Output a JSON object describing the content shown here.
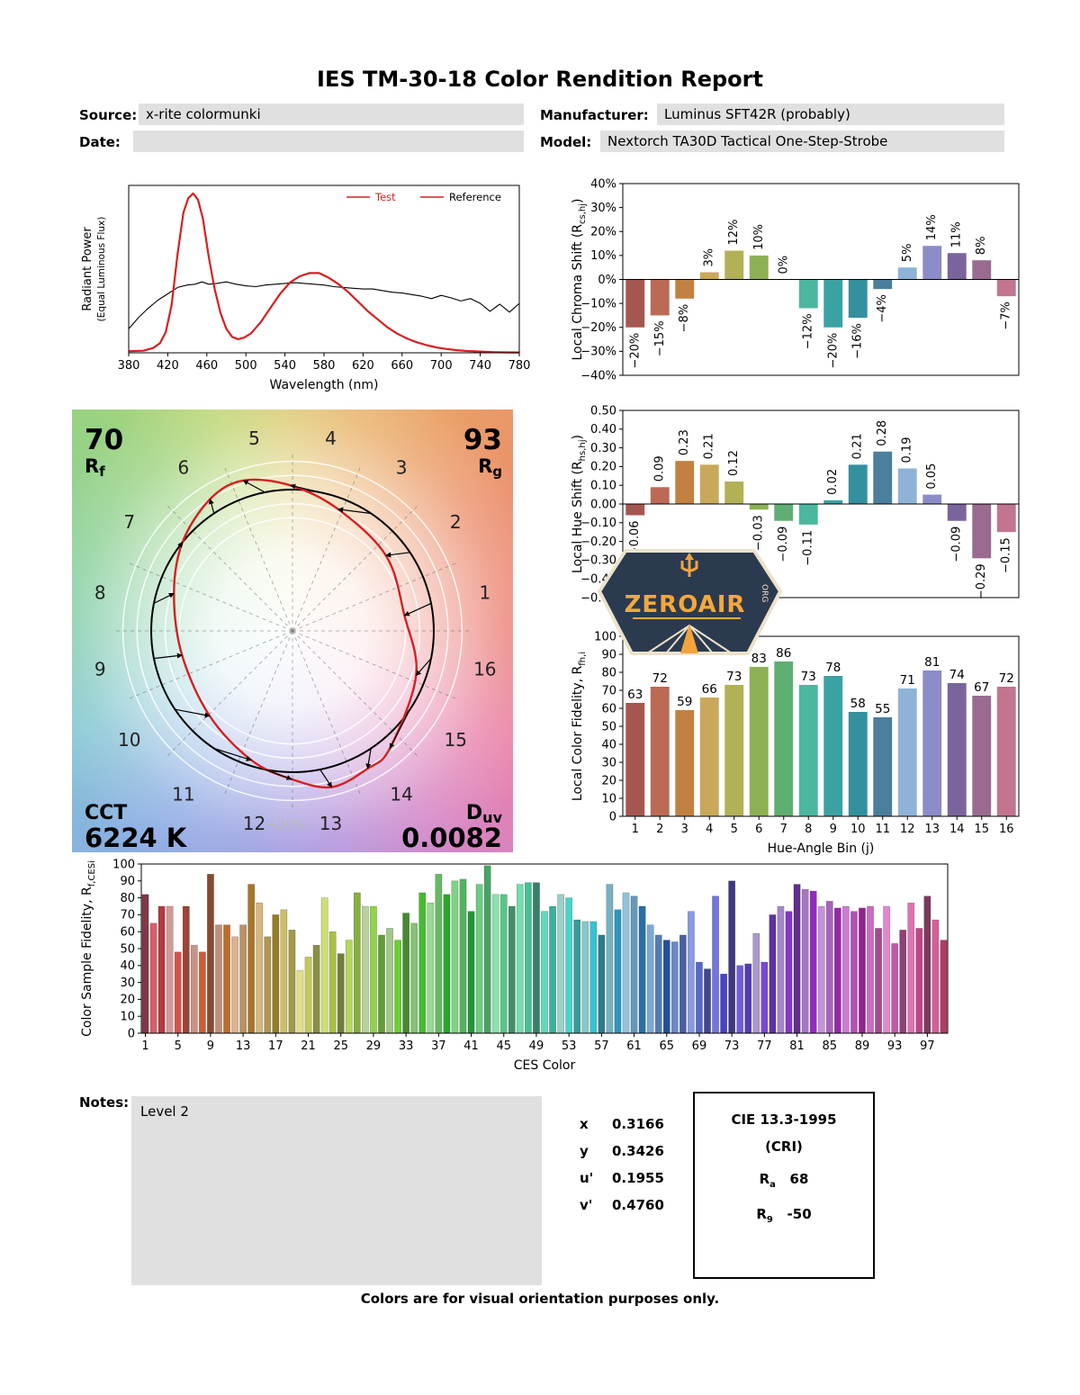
{
  "title": "IES TM-30-18 Color Rendition Report",
  "header": {
    "source_label": "Source:",
    "source_value": "x-rite colormunki",
    "manufacturer_label": "Manufacturer:",
    "manufacturer_value": "Luminus SFT42R (probably)",
    "date_label": "Date:",
    "date_value": "",
    "model_label": "Model:",
    "model_value": "Nextorch TA30D Tactical One-Step-Strobe"
  },
  "bin_colors": [
    "#a5564f",
    "#bd6a55",
    "#c28140",
    "#c9a959",
    "#b2b156",
    "#8db054",
    "#5fae72",
    "#4bb89e",
    "#3aa2a2",
    "#33909f",
    "#4b7f9e",
    "#8fb3d8",
    "#8b8cc8",
    "#7a649c",
    "#996b90",
    "#c27490"
  ],
  "chart_data": [
    {
      "id": "spectral_power_distribution",
      "type": "line",
      "xlabel": "Wavelength (nm)",
      "ylabel_line1": "Radiant Power",
      "ylabel_line2": "(Equal Luminous Flux)",
      "xlim": [
        380,
        780
      ],
      "ylim": [
        0,
        1.05
      ],
      "xticks": [
        380,
        420,
        460,
        500,
        540,
        580,
        620,
        660,
        700,
        740,
        780
      ],
      "legend": [
        {
          "name": "Test",
          "line_color": "#d62020",
          "text_color": "#d62020"
        },
        {
          "name": "Reference",
          "line_color": "#d62020",
          "text_color": "#000000"
        }
      ],
      "series": [
        {
          "name": "Test",
          "color": "#d62020",
          "width": 2.2,
          "points": [
            [
              380,
              0.01
            ],
            [
              395,
              0.013
            ],
            [
              405,
              0.03
            ],
            [
              412,
              0.06
            ],
            [
              418,
              0.13
            ],
            [
              424,
              0.3
            ],
            [
              430,
              0.62
            ],
            [
              436,
              0.88
            ],
            [
              441,
              0.97
            ],
            [
              446,
              1.0
            ],
            [
              451,
              0.96
            ],
            [
              456,
              0.84
            ],
            [
              462,
              0.6
            ],
            [
              468,
              0.4
            ],
            [
              474,
              0.25
            ],
            [
              480,
              0.15
            ],
            [
              486,
              0.1
            ],
            [
              492,
              0.085
            ],
            [
              498,
              0.095
            ],
            [
              505,
              0.12
            ],
            [
              515,
              0.19
            ],
            [
              525,
              0.28
            ],
            [
              535,
              0.37
            ],
            [
              545,
              0.44
            ],
            [
              555,
              0.48
            ],
            [
              565,
              0.5
            ],
            [
              575,
              0.5
            ],
            [
              585,
              0.47
            ],
            [
              595,
              0.43
            ],
            [
              605,
              0.38
            ],
            [
              615,
              0.32
            ],
            [
              625,
              0.26
            ],
            [
              635,
              0.21
            ],
            [
              645,
              0.16
            ],
            [
              655,
              0.12
            ],
            [
              665,
              0.09
            ],
            [
              675,
              0.066
            ],
            [
              685,
              0.048
            ],
            [
              695,
              0.034
            ],
            [
              705,
              0.024
            ],
            [
              715,
              0.017
            ],
            [
              725,
              0.012
            ],
            [
              735,
              0.009
            ],
            [
              745,
              0.006
            ],
            [
              755,
              0.004
            ],
            [
              765,
              0.003
            ],
            [
              780,
              0.002
            ]
          ]
        },
        {
          "name": "Reference",
          "color": "#000000",
          "width": 1.1,
          "points": [
            [
              380,
              0.15
            ],
            [
              390,
              0.22
            ],
            [
              400,
              0.28
            ],
            [
              410,
              0.33
            ],
            [
              420,
              0.37
            ],
            [
              430,
              0.41
            ],
            [
              440,
              0.425
            ],
            [
              448,
              0.43
            ],
            [
              455,
              0.445
            ],
            [
              462,
              0.43
            ],
            [
              470,
              0.435
            ],
            [
              480,
              0.445
            ],
            [
              490,
              0.43
            ],
            [
              500,
              0.42
            ],
            [
              510,
              0.415
            ],
            [
              520,
              0.425
            ],
            [
              530,
              0.43
            ],
            [
              540,
              0.435
            ],
            [
              550,
              0.44
            ],
            [
              560,
              0.435
            ],
            [
              570,
              0.43
            ],
            [
              580,
              0.425
            ],
            [
              590,
              0.415
            ],
            [
              600,
              0.41
            ],
            [
              610,
              0.405
            ],
            [
              620,
              0.4
            ],
            [
              630,
              0.4
            ],
            [
              640,
              0.39
            ],
            [
              650,
              0.38
            ],
            [
              660,
              0.375
            ],
            [
              670,
              0.365
            ],
            [
              680,
              0.355
            ],
            [
              690,
              0.34
            ],
            [
              700,
              0.36
            ],
            [
              710,
              0.345
            ],
            [
              720,
              0.325
            ],
            [
              730,
              0.34
            ],
            [
              740,
              0.31
            ],
            [
              750,
              0.26
            ],
            [
              760,
              0.305
            ],
            [
              770,
              0.255
            ],
            [
              780,
              0.31
            ]
          ]
        }
      ]
    },
    {
      "id": "local_chroma_shift",
      "type": "bar",
      "ylabel_parts": {
        "pre": "Local Chroma Shift (R",
        "sub": "cs,hj",
        "post": ")"
      },
      "categories": [
        1,
        2,
        3,
        4,
        5,
        6,
        7,
        8,
        9,
        10,
        11,
        12,
        13,
        14,
        15,
        16
      ],
      "values": [
        -20,
        -15,
        -8,
        3,
        12,
        10,
        0,
        -12,
        -20,
        -16,
        -4,
        5,
        14,
        11,
        8,
        -7
      ],
      "labels": [
        "−20%",
        "−15%",
        "−8%",
        "3%",
        "12%",
        "10%",
        "0%",
        "−12%",
        "−20%",
        "−16%",
        "−4%",
        "5%",
        "14%",
        "11%",
        "8%",
        "−7%"
      ],
      "ylim": [
        -40,
        40
      ],
      "yticks": [
        {
          "v": 40,
          "t": "40%"
        },
        {
          "v": 30,
          "t": "30%"
        },
        {
          "v": 20,
          "t": "20%"
        },
        {
          "v": 10,
          "t": "10%"
        },
        {
          "v": 0,
          "t": "0%"
        },
        {
          "v": -10,
          "t": "−10%"
        },
        {
          "v": -20,
          "t": "−20%"
        },
        {
          "v": -30,
          "t": "−30%"
        },
        {
          "v": -40,
          "t": "−40%"
        }
      ]
    },
    {
      "id": "local_hue_shift",
      "type": "bar",
      "ylabel_parts": {
        "pre": "Local Hue Shift (R",
        "sub": "hs,hj",
        "post": ")"
      },
      "categories": [
        1,
        2,
        3,
        4,
        5,
        6,
        7,
        8,
        9,
        10,
        11,
        12,
        13,
        14,
        15,
        16
      ],
      "values": [
        -0.06,
        0.09,
        0.23,
        0.21,
        0.12,
        -0.03,
        -0.09,
        -0.11,
        0.02,
        0.21,
        0.28,
        0.19,
        0.05,
        -0.09,
        -0.29,
        -0.15
      ],
      "labels": [
        "−0.06",
        "0.09",
        "0.23",
        "0.21",
        "0.12",
        "−0.03",
        "−0.09",
        "−0.11",
        "0.02",
        "0.21",
        "0.28",
        "0.19",
        "0.05",
        "−0.09",
        "−0.29",
        "−0.15"
      ],
      "ylim": [
        -0.5,
        0.5
      ],
      "yticks": [
        {
          "v": 0.5,
          "t": "0.50"
        },
        {
          "v": 0.4,
          "t": "0.40"
        },
        {
          "v": 0.3,
          "t": "0.30"
        },
        {
          "v": 0.2,
          "t": "0.20"
        },
        {
          "v": 0.1,
          "t": "0.10"
        },
        {
          "v": 0,
          "t": "0.00"
        },
        {
          "v": -0.1,
          "t": "−0.10"
        },
        {
          "v": -0.2,
          "t": "−0.20"
        },
        {
          "v": -0.3,
          "t": "−0.30"
        },
        {
          "v": -0.4,
          "t": "−0.40"
        },
        {
          "v": -0.5,
          "t": "−0.50"
        }
      ]
    },
    {
      "id": "local_color_fidelity",
      "type": "bar",
      "ylabel_parts": {
        "pre": "Local Color Fidelity, R",
        "sub": "fh,i",
        "post": ""
      },
      "xlabel": "Hue-Angle Bin (j)",
      "categories": [
        1,
        2,
        3,
        4,
        5,
        6,
        7,
        8,
        9,
        10,
        11,
        12,
        13,
        14,
        15,
        16
      ],
      "values": [
        63,
        72,
        59,
        66,
        73,
        83,
        86,
        73,
        78,
        58,
        55,
        71,
        81,
        74,
        67,
        72
      ],
      "labels": [
        "63",
        "72",
        "59",
        "66",
        "73",
        "83",
        "86",
        "73",
        "78",
        "58",
        "55",
        "71",
        "81",
        "74",
        "67",
        "72"
      ],
      "ylim": [
        0,
        100
      ],
      "yticks": [
        {
          "v": 100,
          "t": "100"
        },
        {
          "v": 90,
          "t": "90"
        },
        {
          "v": 80,
          "t": "80"
        },
        {
          "v": 70,
          "t": "70"
        },
        {
          "v": 60,
          "t": "60"
        },
        {
          "v": 50,
          "t": "50"
        },
        {
          "v": 40,
          "t": "40"
        },
        {
          "v": 30,
          "t": "30"
        },
        {
          "v": 20,
          "t": "20"
        },
        {
          "v": 10,
          "t": "10"
        },
        {
          "v": 0,
          "t": "0"
        }
      ]
    },
    {
      "id": "color_sample_fidelity",
      "type": "bar",
      "ylabel_parts": {
        "pre": "Color Sample Fidelity, R",
        "sub": "f,CESi",
        "post": ""
      },
      "xlabel": "CES Color",
      "xticks": [
        1,
        5,
        9,
        13,
        17,
        21,
        25,
        29,
        33,
        37,
        41,
        45,
        49,
        53,
        57,
        61,
        65,
        69,
        73,
        77,
        81,
        85,
        89,
        93,
        97
      ],
      "values": [
        82,
        65,
        75,
        75,
        48,
        75,
        52,
        48,
        94,
        64,
        64,
        57,
        64,
        88,
        77,
        57,
        70,
        73,
        61,
        37,
        45,
        52,
        80,
        60,
        47,
        55,
        83,
        75,
        75,
        58,
        62,
        55,
        71,
        65,
        83,
        77,
        94,
        82,
        90,
        91,
        72,
        88,
        99,
        82,
        82,
        75,
        88,
        89,
        89,
        72,
        75,
        82,
        80,
        67,
        66,
        66,
        58,
        88,
        73,
        83,
        81,
        75,
        64,
        58,
        55,
        54,
        58,
        72,
        42,
        38,
        81,
        35,
        90,
        40,
        41,
        59,
        42,
        70,
        75,
        72,
        88,
        85,
        84,
        75,
        78,
        74,
        75,
        72,
        74,
        75,
        62,
        75,
        53,
        61,
        77,
        62,
        81,
        67,
        55
      ],
      "ylim": [
        0,
        100
      ],
      "yticks": [
        {
          "v": 100,
          "t": "100"
        },
        {
          "v": 90,
          "t": "90"
        },
        {
          "v": 80,
          "t": "80"
        },
        {
          "v": 70,
          "t": "70"
        },
        {
          "v": 60,
          "t": "60"
        },
        {
          "v": 50,
          "t": "50"
        },
        {
          "v": 40,
          "t": "40"
        },
        {
          "v": 30,
          "t": "30"
        },
        {
          "v": 20,
          "t": "20"
        },
        {
          "v": 10,
          "t": "10"
        },
        {
          "v": 0,
          "t": "0"
        }
      ]
    }
  ],
  "cvg": {
    "rf_value": "70",
    "rf_label": {
      "pre": "R",
      "sub": "f"
    },
    "rg_value": "93",
    "rg_label": {
      "pre": "R",
      "sub": "g"
    },
    "cct_label": "CCT",
    "cct_value": "6224 K",
    "duv_label": {
      "pre": "D",
      "sub": "uv"
    },
    "duv_value": "0.0082",
    "ring_label": "+20%",
    "bins": [
      "1",
      "2",
      "3",
      "4",
      "5",
      "6",
      "7",
      "8",
      "9",
      "10",
      "11",
      "12",
      "13",
      "14",
      "15",
      "16"
    ]
  },
  "watermark": {
    "text": "ZEROAIR",
    "org": "ORG"
  },
  "notes": {
    "label": "Notes:",
    "value": "Level 2"
  },
  "chromaticity": {
    "rows": [
      [
        "x",
        "0.3166"
      ],
      [
        "y",
        "0.3426"
      ],
      [
        "u'",
        "0.1955"
      ],
      [
        "v'",
        "0.4760"
      ]
    ]
  },
  "cri": {
    "title": "CIE 13.3-1995",
    "subtitle": "(CRI)",
    "ra_label": "R",
    "ra_sub": "a",
    "ra_value": "68",
    "r9_label": "R",
    "r9_sub": "9",
    "r9_value": "-50"
  },
  "footer": "Colors are for visual orientation purposes only."
}
